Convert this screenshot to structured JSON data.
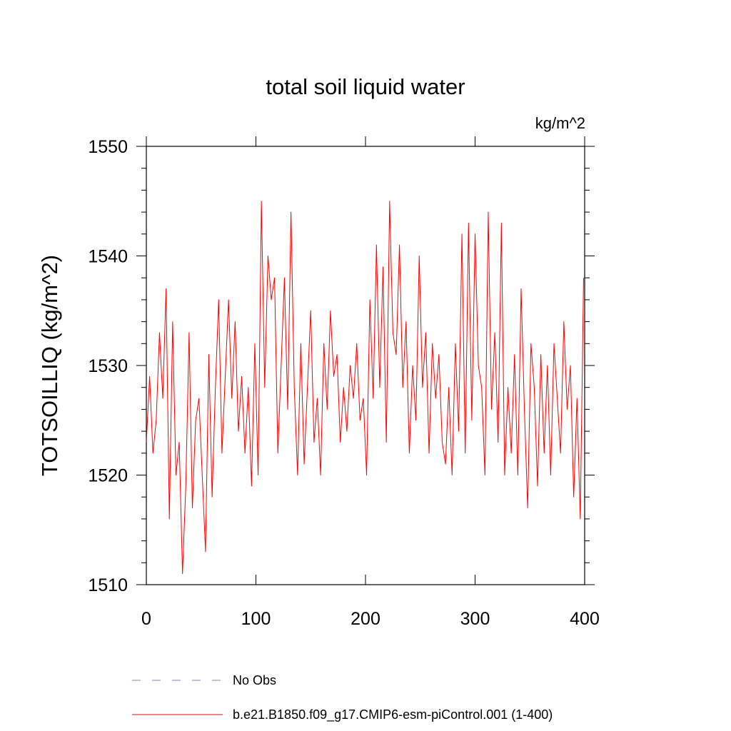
{
  "chart_data": {
    "type": "line",
    "title": "total soil liquid water",
    "units_label": "kg/m^2",
    "ylabel": "TOTSOILLIQ  (kg/m^2)",
    "xlabel": "",
    "xlim": [
      0,
      400
    ],
    "ylim": [
      1510,
      1550
    ],
    "x_ticks": [
      0,
      100,
      200,
      300,
      400
    ],
    "x_tick_labels": [
      "0",
      "100",
      "200",
      "300",
      "400"
    ],
    "y_ticks": [
      1510,
      1520,
      1530,
      1540,
      1550
    ],
    "y_tick_labels": [
      "1510",
      "1520",
      "1530",
      "1540",
      "1550"
    ],
    "grid": false,
    "legend_placement": "bottom",
    "series": [
      {
        "name": "No Obs",
        "color": "#8080c0",
        "dash": "dashed",
        "values": []
      },
      {
        "name": "b.e21.B1850.f09_g17.CMIP6-esm-piControl.001 (1-400)",
        "color": "#ff0000",
        "dash": "solid",
        "x": [
          0,
          3,
          6,
          9,
          12,
          15,
          18,
          21,
          24,
          27,
          30,
          33,
          36,
          39,
          42,
          45,
          48,
          51,
          54,
          57,
          60,
          63,
          66,
          69,
          72,
          75,
          78,
          81,
          84,
          87,
          90,
          93,
          96,
          99,
          102,
          105,
          108,
          111,
          114,
          117,
          120,
          123,
          126,
          129,
          132,
          135,
          138,
          141,
          144,
          147,
          150,
          153,
          156,
          159,
          162,
          165,
          168,
          171,
          174,
          177,
          180,
          183,
          186,
          189,
          192,
          195,
          198,
          201,
          204,
          207,
          210,
          213,
          216,
          219,
          222,
          225,
          228,
          231,
          234,
          237,
          240,
          243,
          246,
          249,
          252,
          255,
          258,
          261,
          264,
          267,
          270,
          273,
          276,
          279,
          282,
          285,
          288,
          291,
          294,
          297,
          300,
          303,
          306,
          309,
          312,
          315,
          318,
          321,
          324,
          327,
          330,
          333,
          336,
          339,
          342,
          345,
          348,
          351,
          354,
          357,
          360,
          363,
          366,
          369,
          372,
          375,
          378,
          381,
          384,
          387,
          390,
          393,
          396,
          399
        ],
        "values": [
          1523,
          1529,
          1522,
          1525,
          1533,
          1527,
          1537,
          1516,
          1534,
          1520,
          1523,
          1511,
          1519,
          1533,
          1517,
          1525,
          1527,
          1520,
          1513,
          1531,
          1518,
          1528,
          1536,
          1522,
          1529,
          1536,
          1527,
          1534,
          1524,
          1529,
          1522,
          1528,
          1519,
          1532,
          1520,
          1545,
          1528,
          1540,
          1536,
          1538,
          1522,
          1530,
          1538,
          1526,
          1544,
          1528,
          1520,
          1532,
          1521,
          1528,
          1535,
          1523,
          1527,
          1520,
          1532,
          1526,
          1535,
          1529,
          1531,
          1523,
          1528,
          1524,
          1530,
          1527,
          1532,
          1525,
          1527,
          1520,
          1536,
          1527,
          1541,
          1528,
          1539,
          1523,
          1545,
          1533,
          1531,
          1541,
          1528,
          1534,
          1522,
          1530,
          1525,
          1540,
          1528,
          1533,
          1522,
          1532,
          1527,
          1531,
          1523,
          1521,
          1528,
          1520,
          1532,
          1524,
          1542,
          1522,
          1543,
          1525,
          1542,
          1530,
          1528,
          1520,
          1544,
          1526,
          1533,
          1523,
          1543,
          1520,
          1528,
          1522,
          1531,
          1520,
          1537,
          1526,
          1517,
          1532,
          1528,
          1519,
          1531,
          1522,
          1530,
          1520,
          1532,
          1527,
          1522,
          1534,
          1526,
          1530,
          1518,
          1527,
          1516,
          1538
        ]
      }
    ]
  }
}
